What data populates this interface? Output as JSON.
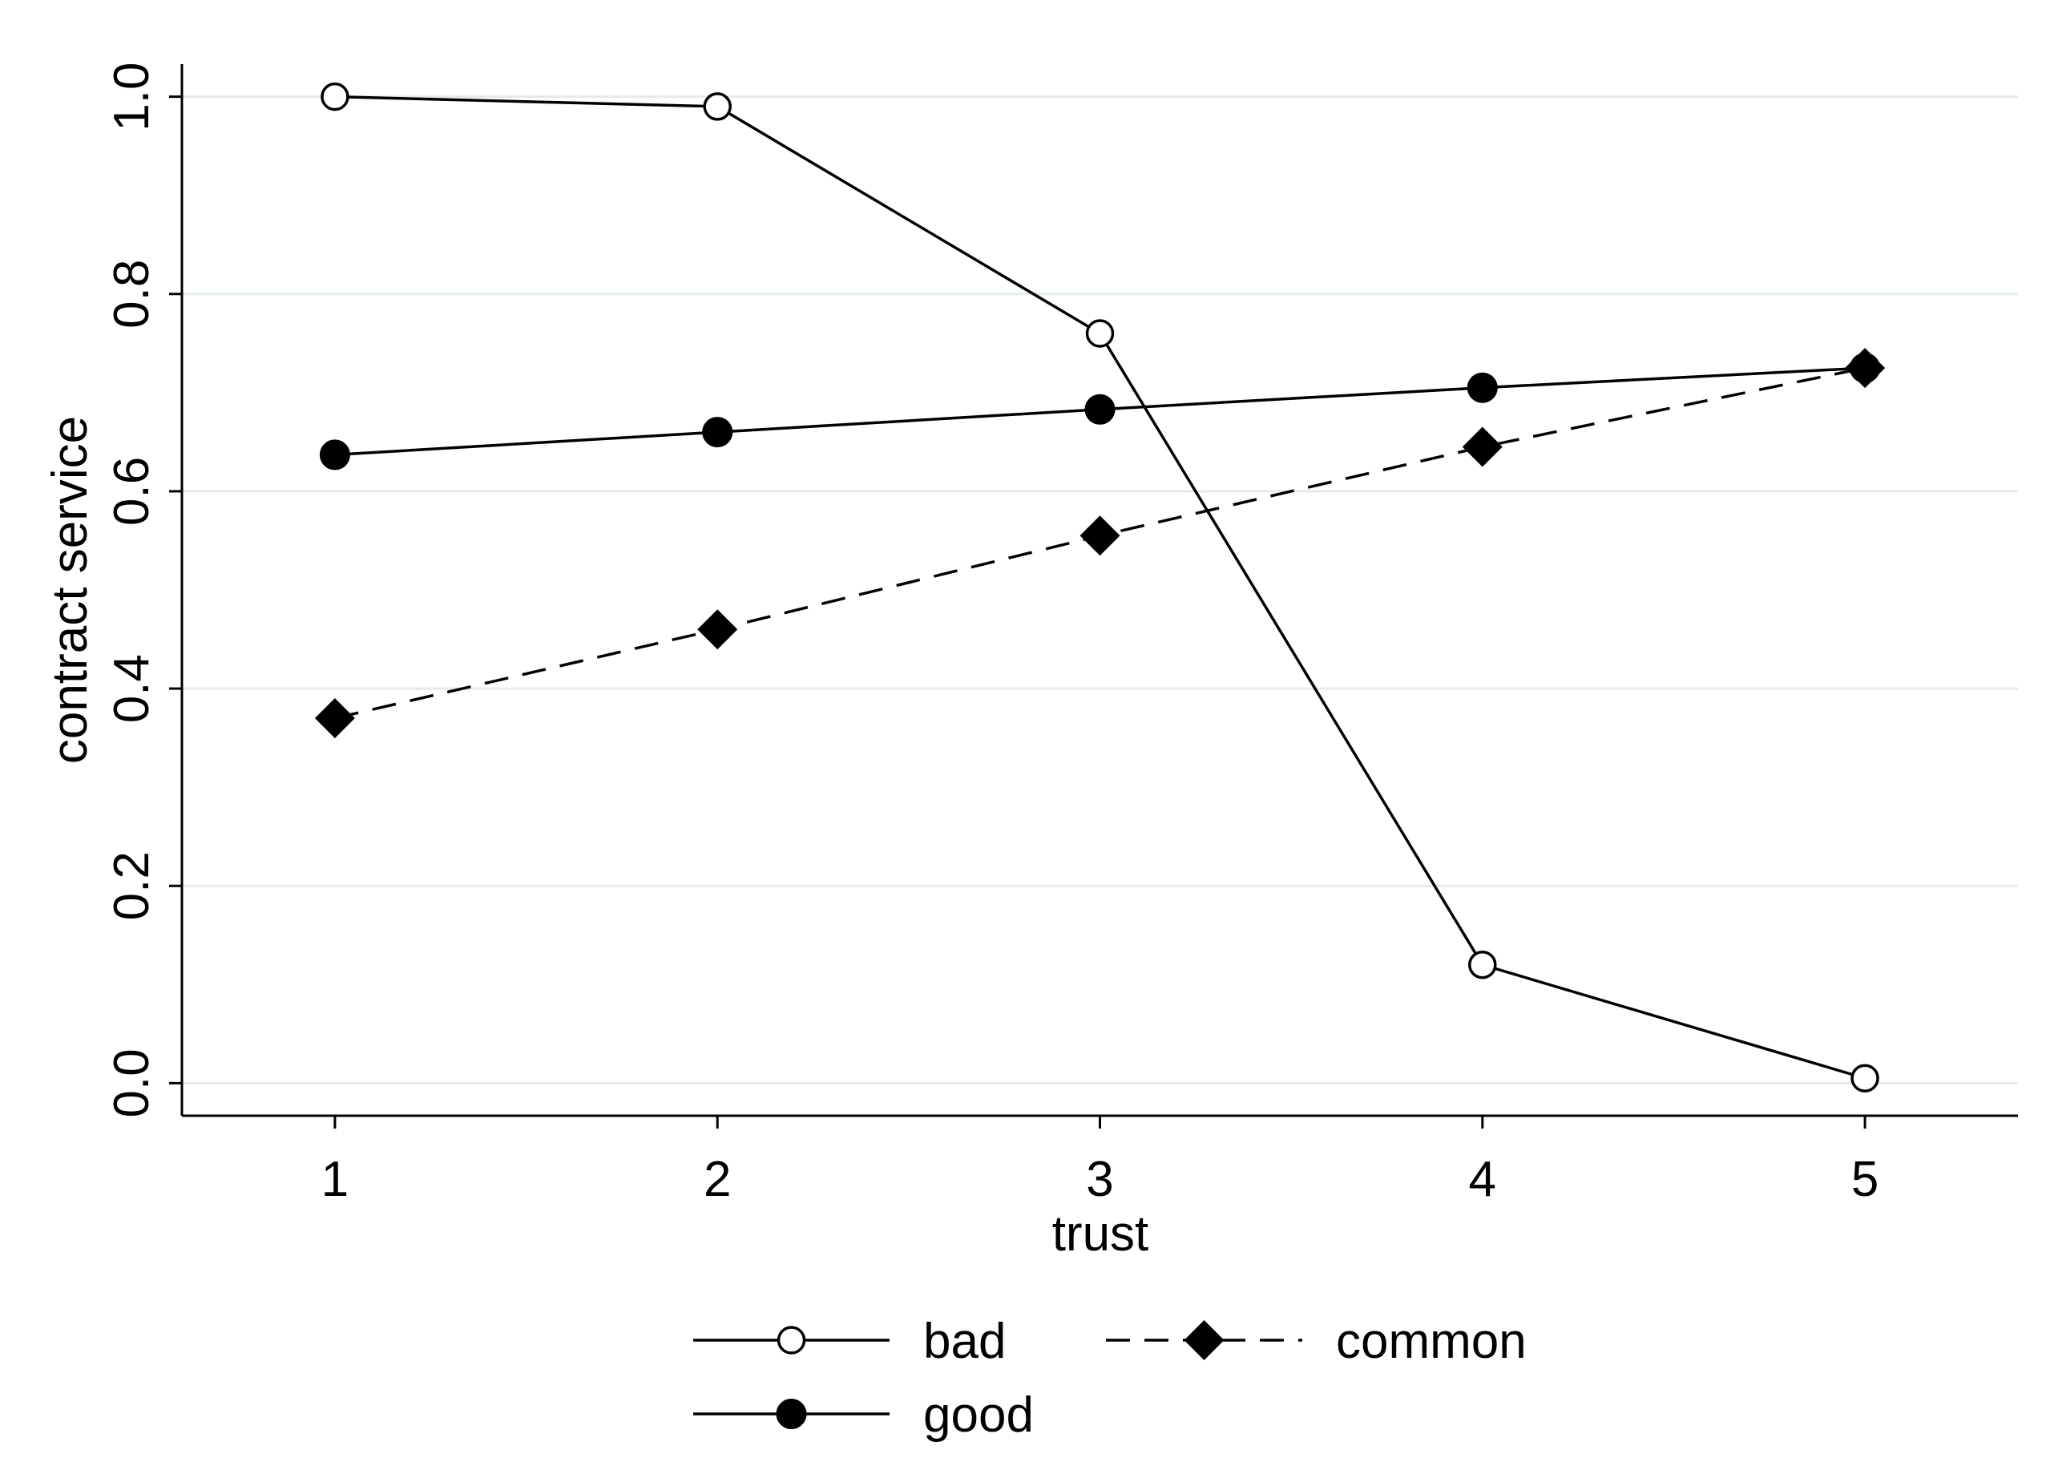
{
  "chart_data": {
    "type": "line",
    "title": "",
    "xlabel": "trust",
    "ylabel": "contract service",
    "x": [
      1,
      2,
      3,
      4,
      5
    ],
    "x_ticks": [
      "1",
      "2",
      "3",
      "4",
      "5"
    ],
    "xlim": [
      0.6,
      5.4
    ],
    "y_ticks": [
      "0.0",
      "0.2",
      "0.4",
      "0.6",
      "0.8",
      "1.0"
    ],
    "ylim": [
      -0.033,
      1.033
    ],
    "grid": true,
    "legend_position": "bottom",
    "series": [
      {
        "name": "bad",
        "values": [
          1.0,
          0.99,
          0.76,
          0.12,
          0.005
        ],
        "marker": "hollow-circle",
        "line_style": "solid"
      },
      {
        "name": "common",
        "values": [
          0.37,
          0.46,
          0.555,
          0.645,
          0.725
        ],
        "marker": "diamond",
        "line_style": "dashed"
      },
      {
        "name": "good",
        "values": [
          0.637,
          0.66,
          0.683,
          0.705,
          0.725
        ],
        "marker": "filled-circle",
        "line_style": "solid"
      }
    ],
    "colors": {
      "line": "#000000",
      "grid": "#e3ebee",
      "background": "#ffffff"
    }
  }
}
